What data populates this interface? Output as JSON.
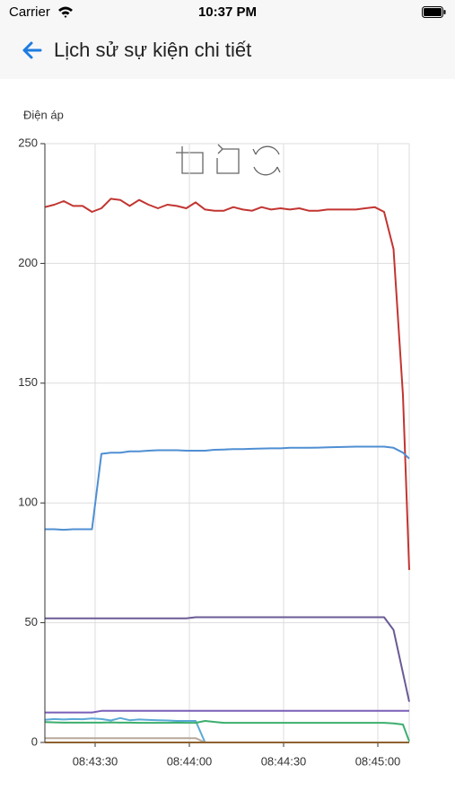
{
  "status_bar": {
    "carrier": "Carrier",
    "time": "10:37 PM"
  },
  "header": {
    "title": "Lịch sử sự kiện chi tiết"
  },
  "chart_data": {
    "type": "line",
    "y_label": "Điện áp",
    "x": [
      "08:43:14",
      "08:43:17",
      "08:43:20",
      "08:43:23",
      "08:43:26",
      "08:43:29",
      "08:43:32",
      "08:43:35",
      "08:43:38",
      "08:43:41",
      "08:43:44",
      "08:43:47",
      "08:43:50",
      "08:43:53",
      "08:43:56",
      "08:43:59",
      "08:44:02",
      "08:44:05",
      "08:44:08",
      "08:44:11",
      "08:44:14",
      "08:44:17",
      "08:44:20",
      "08:44:23",
      "08:44:26",
      "08:44:29",
      "08:44:32",
      "08:44:35",
      "08:44:38",
      "08:44:41",
      "08:44:44",
      "08:44:47",
      "08:44:50",
      "08:44:53",
      "08:44:56",
      "08:44:59",
      "08:45:02",
      "08:45:05",
      "08:45:08",
      "08:45:10"
    ],
    "xlim": [
      "08:43:14",
      "08:45:10"
    ],
    "xticks": [
      "08:43:30",
      "08:44:00",
      "08:44:30",
      "08:45:00"
    ],
    "ylim": [
      0,
      250
    ],
    "yticks": [
      0,
      50,
      100,
      150,
      200,
      250
    ],
    "grid": true,
    "series": [
      {
        "color": "#c23531",
        "values": [
          223.5,
          224.5,
          226,
          224,
          224,
          221.5,
          223,
          227,
          226.5,
          224,
          226.5,
          224.5,
          223,
          224.5,
          224,
          223,
          225.5,
          222.5,
          222,
          222,
          223.5,
          222.5,
          222,
          223.5,
          222.5,
          223,
          222.5,
          223,
          222,
          222,
          222.5,
          222.5,
          222.5,
          222.5,
          223,
          223.5,
          221.5,
          206,
          145,
          72
        ]
      },
      {
        "color": "#4f8fd3",
        "values": [
          89,
          89,
          88.8,
          89,
          89,
          89,
          120.5,
          121,
          121,
          121.5,
          121.5,
          121.8,
          122,
          122,
          122,
          121.8,
          121.8,
          121.8,
          122.2,
          122.3,
          122.5,
          122.5,
          122.6,
          122.7,
          122.8,
          122.8,
          123,
          123,
          123,
          123.1,
          123.2,
          123.3,
          123.4,
          123.5,
          123.5,
          123.5,
          123.5,
          123,
          121,
          118.5
        ]
      },
      {
        "color": "#6b5b95",
        "values": [
          51.8,
          51.8,
          51.8,
          51.8,
          51.8,
          51.8,
          51.8,
          51.8,
          51.8,
          51.8,
          51.8,
          51.8,
          51.8,
          51.8,
          51.8,
          51.8,
          52.3,
          52.3,
          52.3,
          52.3,
          52.3,
          52.3,
          52.3,
          52.3,
          52.3,
          52.3,
          52.3,
          52.3,
          52.3,
          52.3,
          52.3,
          52.3,
          52.3,
          52.3,
          52.3,
          52.3,
          52.3,
          47,
          29,
          17
        ]
      },
      {
        "color": "#7a5fb8",
        "values": [
          12.5,
          12.5,
          12.5,
          12.5,
          12.5,
          12.5,
          13.2,
          13.2,
          13.2,
          13.2,
          13.2,
          13.2,
          13.2,
          13.2,
          13.2,
          13.2,
          13.2,
          13.2,
          13.2,
          13.2,
          13.2,
          13.2,
          13.2,
          13.2,
          13.2,
          13.2,
          13.2,
          13.2,
          13.2,
          13.2,
          13.2,
          13.2,
          13.2,
          13.2,
          13.2,
          13.2,
          13.2,
          13.2,
          13.2,
          13.2
        ]
      },
      {
        "color": "#5aa9d6",
        "values": [
          9.5,
          9.8,
          9.6,
          9.8,
          9.7,
          10,
          9.8,
          9.2,
          10.2,
          9.3,
          9.6,
          9.4,
          9.3,
          9.2,
          9,
          9,
          9,
          0,
          0,
          0,
          0,
          0,
          0,
          0,
          0,
          0,
          0,
          0,
          0,
          0,
          0,
          0,
          0,
          0,
          0,
          0,
          0,
          0,
          0,
          0
        ]
      },
      {
        "color": "#3cae6e",
        "values": [
          8.5,
          8.4,
          8.3,
          8.3,
          8.3,
          8.3,
          8.3,
          8.4,
          8.3,
          8.3,
          8.2,
          8.2,
          8.2,
          8.2,
          8.3,
          8.2,
          8.2,
          9,
          8.6,
          8.2,
          8.2,
          8.2,
          8.2,
          8.2,
          8.2,
          8.2,
          8.2,
          8.2,
          8.2,
          8.2,
          8.2,
          8.2,
          8.2,
          8.2,
          8.2,
          8.2,
          8.2,
          8,
          7.5,
          0.5
        ]
      },
      {
        "color": "#b8a89a",
        "values": [
          1.8,
          1.8,
          1.8,
          1.8,
          1.8,
          1.8,
          1.8,
          1.8,
          1.8,
          1.8,
          1.8,
          1.8,
          1.8,
          1.8,
          1.8,
          1.8,
          1.8,
          0,
          0,
          0,
          0,
          0,
          0,
          0,
          0,
          0,
          0,
          0,
          0,
          0,
          0,
          0,
          0,
          0,
          0,
          0,
          0,
          0,
          0,
          0
        ]
      },
      {
        "color": "#e8902a",
        "values": [
          0,
          0,
          0,
          0,
          0,
          0,
          0,
          0,
          0,
          0,
          0,
          0,
          0,
          0,
          0,
          0,
          0,
          0,
          0,
          0,
          0,
          0,
          0,
          0,
          0,
          0,
          0,
          0,
          0,
          0,
          0,
          0,
          0,
          0,
          0,
          0,
          0,
          0,
          0,
          0
        ]
      }
    ]
  }
}
